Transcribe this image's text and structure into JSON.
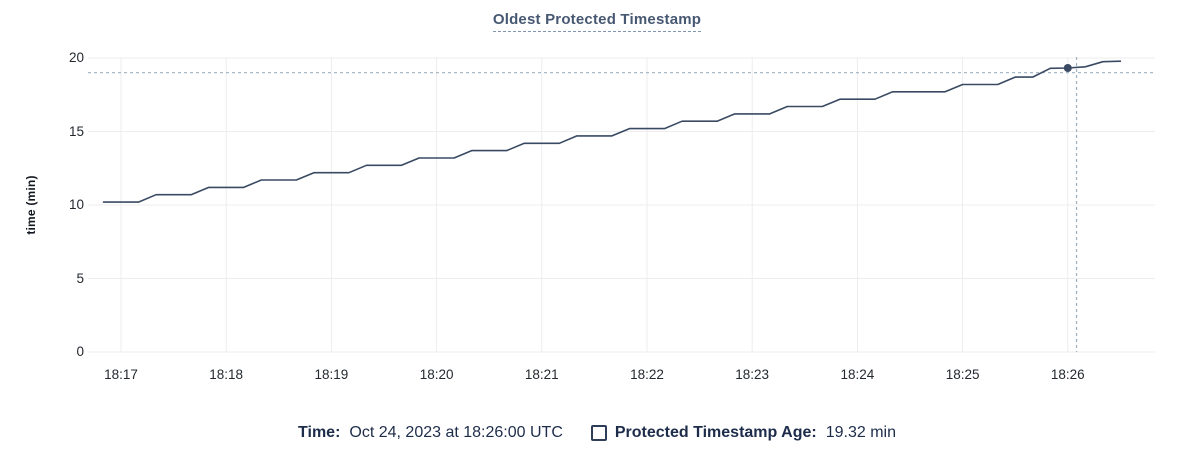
{
  "title": {
    "text": "Oldest Protected Timestamp"
  },
  "footer": {
    "time_label": "Time:",
    "time_value": "Oct 24, 2023 at 18:26:00 UTC",
    "series_label": "Protected Timestamp Age:",
    "series_value": "19.32 min"
  },
  "colors": {
    "line": "#3a4a63",
    "dot": "#3a4a63",
    "grid": "#ededef",
    "crosshair": "#9db1c1",
    "title": "#475872",
    "footer_text": "#1d2c4a",
    "tick_text": "#24292f"
  },
  "chart_data": {
    "type": "line",
    "title": "Oldest Protected Timestamp",
    "xlabel": "",
    "ylabel": "time (min)",
    "ylim": [
      0,
      20
    ],
    "y_ticks": [
      0,
      5,
      10,
      15,
      20
    ],
    "x_ticks": [
      "18:17",
      "18:18",
      "18:19",
      "18:20",
      "18:21",
      "18:22",
      "18:23",
      "18:24",
      "18:25",
      "18:26"
    ],
    "grid": true,
    "legend_position": "bottom",
    "series": [
      {
        "name": "Protected Timestamp Age",
        "unit": "min",
        "points": [
          [
            "18:16:50",
            10.2
          ],
          [
            "18:17:00",
            10.2
          ],
          [
            "18:17:10",
            10.2
          ],
          [
            "18:17:20",
            10.7
          ],
          [
            "18:17:30",
            10.7
          ],
          [
            "18:17:40",
            10.7
          ],
          [
            "18:17:50",
            11.2
          ],
          [
            "18:18:00",
            11.2
          ],
          [
            "18:18:10",
            11.2
          ],
          [
            "18:18:20",
            11.7
          ],
          [
            "18:18:30",
            11.7
          ],
          [
            "18:18:40",
            11.7
          ],
          [
            "18:18:50",
            12.2
          ],
          [
            "18:19:00",
            12.2
          ],
          [
            "18:19:10",
            12.2
          ],
          [
            "18:19:20",
            12.7
          ],
          [
            "18:19:30",
            12.7
          ],
          [
            "18:19:40",
            12.7
          ],
          [
            "18:19:50",
            13.2
          ],
          [
            "18:20:00",
            13.2
          ],
          [
            "18:20:10",
            13.2
          ],
          [
            "18:20:20",
            13.7
          ],
          [
            "18:20:30",
            13.7
          ],
          [
            "18:20:40",
            13.7
          ],
          [
            "18:20:50",
            14.2
          ],
          [
            "18:21:00",
            14.2
          ],
          [
            "18:21:10",
            14.2
          ],
          [
            "18:21:20",
            14.7
          ],
          [
            "18:21:30",
            14.7
          ],
          [
            "18:21:40",
            14.7
          ],
          [
            "18:21:50",
            15.2
          ],
          [
            "18:22:00",
            15.2
          ],
          [
            "18:22:10",
            15.2
          ],
          [
            "18:22:20",
            15.7
          ],
          [
            "18:22:30",
            15.7
          ],
          [
            "18:22:40",
            15.7
          ],
          [
            "18:22:50",
            16.2
          ],
          [
            "18:23:00",
            16.2
          ],
          [
            "18:23:10",
            16.2
          ],
          [
            "18:23:20",
            16.7
          ],
          [
            "18:23:30",
            16.7
          ],
          [
            "18:23:40",
            16.7
          ],
          [
            "18:23:50",
            17.2
          ],
          [
            "18:24:00",
            17.2
          ],
          [
            "18:24:10",
            17.2
          ],
          [
            "18:24:20",
            17.7
          ],
          [
            "18:24:30",
            17.7
          ],
          [
            "18:24:40",
            17.7
          ],
          [
            "18:24:50",
            17.7
          ],
          [
            "18:25:00",
            18.2
          ],
          [
            "18:25:10",
            18.2
          ],
          [
            "18:25:20",
            18.2
          ],
          [
            "18:25:30",
            18.7
          ],
          [
            "18:25:40",
            18.7
          ],
          [
            "18:25:50",
            19.3
          ],
          [
            "18:26:00",
            19.32
          ],
          [
            "18:26:10",
            19.4
          ],
          [
            "18:26:20",
            19.75
          ],
          [
            "18:26:30",
            19.78
          ]
        ]
      }
    ],
    "hover": {
      "point_time": "18:26:00",
      "point_value_min": 19.32,
      "crosshair_time": "18:26:05",
      "crosshair_value_min": 19.0
    }
  }
}
